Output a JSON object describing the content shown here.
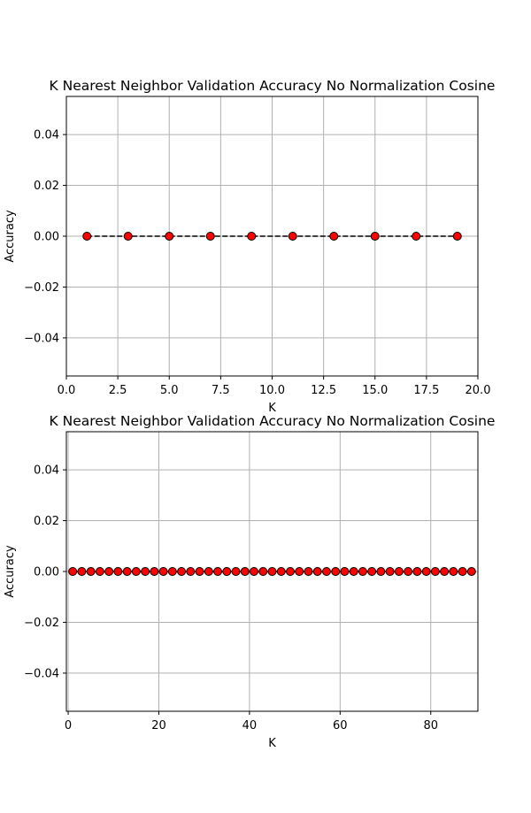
{
  "chart_data": [
    {
      "type": "line",
      "title": "K Nearest Neighbor Validation Accuracy No Normalization Cosine",
      "xlabel": "K",
      "ylabel": "Accuracy",
      "xlim": [
        0.0,
        20.0
      ],
      "ylim": [
        -0.055,
        0.055
      ],
      "xticks": [
        "0.0",
        "2.5",
        "5.0",
        "7.5",
        "10.0",
        "12.5",
        "15.0",
        "17.5",
        "20.0"
      ],
      "yticks": [
        "−0.04",
        "−0.02",
        "0.00",
        "0.02",
        "0.04"
      ],
      "grid": true,
      "line_style": "dashed",
      "line_color": "#000000",
      "marker_color": "#ff0000",
      "x": [
        1,
        3,
        5,
        7,
        9,
        11,
        13,
        15,
        17,
        19
      ],
      "y": [
        0,
        0,
        0,
        0,
        0,
        0,
        0,
        0,
        0,
        0
      ]
    },
    {
      "type": "line",
      "title": "K Nearest Neighbor Validation Accuracy No Normalization Cosine",
      "xlabel": "K",
      "ylabel": "Accuracy",
      "xlim": [
        -0.4,
        90.4
      ],
      "ylim": [
        -0.055,
        0.055
      ],
      "xticks": [
        "0",
        "20",
        "40",
        "60",
        "80"
      ],
      "yticks": [
        "−0.04",
        "−0.02",
        "0.00",
        "0.02",
        "0.04"
      ],
      "grid": true,
      "line_style": "solid",
      "line_color": "#000000",
      "marker_color": "#ff0000",
      "x": [
        1,
        3,
        5,
        7,
        9,
        11,
        13,
        15,
        17,
        19,
        21,
        23,
        25,
        27,
        29,
        31,
        33,
        35,
        37,
        39,
        41,
        43,
        45,
        47,
        49,
        51,
        53,
        55,
        57,
        59,
        61,
        63,
        65,
        67,
        69,
        71,
        73,
        75,
        77,
        79,
        81,
        83,
        85,
        87,
        89
      ],
      "y": [
        0,
        0,
        0,
        0,
        0,
        0,
        0,
        0,
        0,
        0,
        0,
        0,
        0,
        0,
        0,
        0,
        0,
        0,
        0,
        0,
        0,
        0,
        0,
        0,
        0,
        0,
        0,
        0,
        0,
        0,
        0,
        0,
        0,
        0,
        0,
        0,
        0,
        0,
        0,
        0,
        0,
        0,
        0,
        0,
        0
      ]
    }
  ]
}
